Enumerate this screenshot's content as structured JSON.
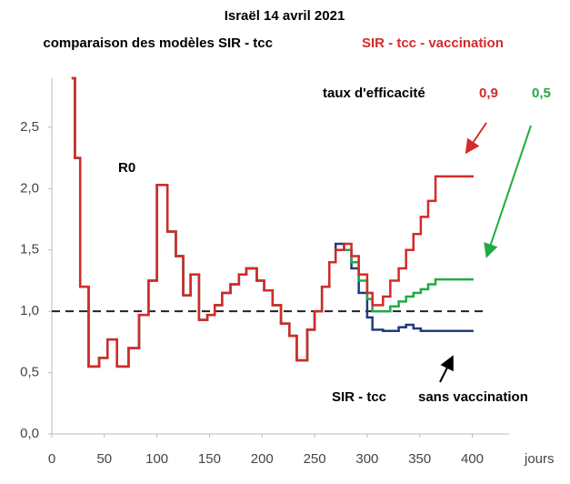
{
  "chart_data": {
    "type": "step-line",
    "title": "Israël 14 avril 2021",
    "subtitle": "comparaison  des modèles  SIR - tcc",
    "subtitle_highlight": "SIR - tcc - vaccination",
    "x_label": "jours",
    "annotations": [
      "R0",
      "taux d'efficacité",
      "sans vaccination"
    ],
    "reference_line": 1,
    "xlim": [
      0,
      435
    ],
    "xticks": [
      0,
      50,
      100,
      150,
      200,
      250,
      300,
      350,
      400
    ],
    "ylim": [
      0,
      2.9
    ],
    "yticks": [
      {
        "value": 0,
        "label": "0,0"
      },
      {
        "value": 0.5,
        "label": "0,5"
      },
      {
        "value": 1,
        "label": "1,0"
      },
      {
        "value": 1.5,
        "label": "1,5"
      },
      {
        "value": 2,
        "label": "2,0"
      },
      {
        "value": 2.5,
        "label": "2,5"
      }
    ],
    "x": [
      20,
      22,
      27,
      35,
      45,
      53,
      62,
      73,
      83,
      92,
      100,
      110,
      118,
      125,
      132,
      140,
      148,
      155,
      162,
      170,
      178,
      185,
      195,
      202,
      210,
      218,
      226,
      233,
      243,
      250,
      257,
      264,
      270,
      278,
      285,
      292,
      300,
      305,
      315,
      322,
      330,
      337,
      344,
      351,
      358,
      365,
      400
    ],
    "series": [
      {
        "name": "SIR - tcc",
        "color": "#1f3d7a",
        "values": [
          2.9,
          2.25,
          1.2,
          0.55,
          0.62,
          0.77,
          0.55,
          0.7,
          0.97,
          1.25,
          2.03,
          1.65,
          1.45,
          1.13,
          1.3,
          0.93,
          0.97,
          1.05,
          1.15,
          1.22,
          1.3,
          1.35,
          1.25,
          1.17,
          1.05,
          0.9,
          0.8,
          0.6,
          0.85,
          1.0,
          1.2,
          1.4,
          1.55,
          1.5,
          1.35,
          1.15,
          0.95,
          0.85,
          0.84,
          0.84,
          0.87,
          0.89,
          0.86,
          0.84,
          0.84,
          0.84,
          0.84
        ]
      },
      {
        "name": "0,5",
        "color": "#22aa44",
        "values": [
          2.9,
          2.25,
          1.2,
          0.55,
          0.62,
          0.77,
          0.55,
          0.7,
          0.97,
          1.25,
          2.03,
          1.65,
          1.45,
          1.13,
          1.3,
          0.93,
          0.97,
          1.05,
          1.15,
          1.22,
          1.3,
          1.35,
          1.25,
          1.17,
          1.05,
          0.9,
          0.8,
          0.6,
          0.85,
          1.0,
          1.2,
          1.4,
          1.5,
          1.5,
          1.4,
          1.25,
          1.1,
          1.0,
          1.0,
          1.04,
          1.08,
          1.12,
          1.15,
          1.18,
          1.22,
          1.26,
          1.26
        ]
      },
      {
        "name": "0,9",
        "color": "#d42a2a",
        "values": [
          2.9,
          2.25,
          1.2,
          0.55,
          0.62,
          0.77,
          0.55,
          0.7,
          0.97,
          1.25,
          2.03,
          1.65,
          1.45,
          1.13,
          1.3,
          0.93,
          0.97,
          1.05,
          1.15,
          1.22,
          1.3,
          1.35,
          1.25,
          1.17,
          1.05,
          0.9,
          0.8,
          0.6,
          0.85,
          1.0,
          1.2,
          1.4,
          1.5,
          1.55,
          1.45,
          1.3,
          1.15,
          1.05,
          1.12,
          1.25,
          1.35,
          1.5,
          1.63,
          1.77,
          1.9,
          2.1,
          2.1
        ]
      }
    ]
  }
}
